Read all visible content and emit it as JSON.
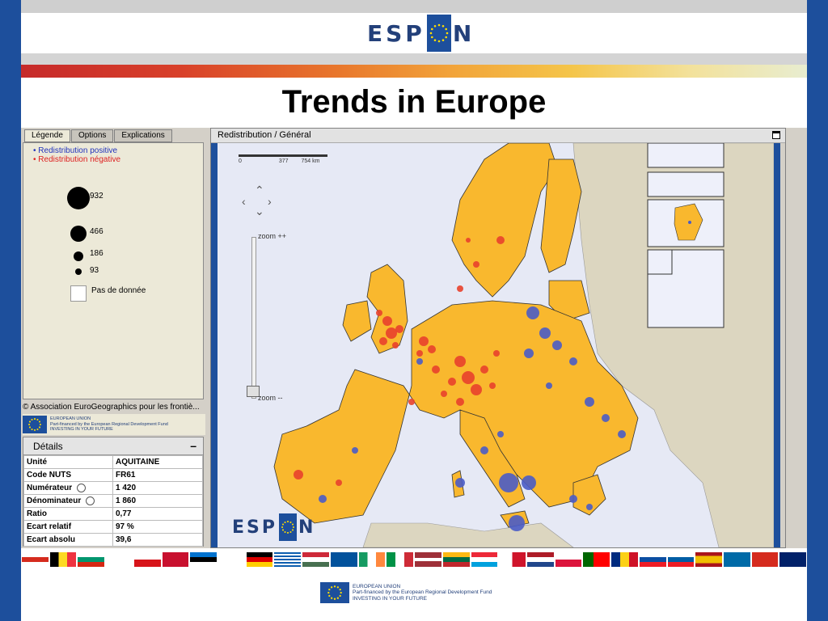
{
  "header": {
    "logo_left": "ESP",
    "logo_right": "N"
  },
  "title": "Trends in Europe",
  "left_panel": {
    "tabs": [
      {
        "label": "Légende",
        "active": true
      },
      {
        "label": "Options",
        "active": false
      },
      {
        "label": "Explications",
        "active": false
      }
    ],
    "legend": {
      "positive_label": "• Redistribution positive",
      "negative_label": "• Redistribution négative",
      "positive_color": "#2233bb",
      "negative_color": "#dd2222",
      "bubbles": [
        {
          "value": "932"
        },
        {
          "value": "466"
        },
        {
          "value": "186"
        },
        {
          "value": "93"
        }
      ],
      "no_data_label": "Pas de donnée"
    },
    "copyright": "© Association EuroGeographics pour les frontiè...",
    "eu_text": [
      "EUROPEAN UNION",
      "Part-financed by the European Regional Development Fund",
      "INVESTING IN YOUR FUTURE"
    ],
    "details": {
      "title": "Détails",
      "collapse_label": "–",
      "rows": [
        {
          "key": "Unité",
          "value": "AQUITAINE"
        },
        {
          "key": "Code NUTS",
          "value": "FR61"
        },
        {
          "key": "Numérateur",
          "value": "1 420"
        },
        {
          "key": "Dénominateur",
          "value": "1 860"
        },
        {
          "key": "Ratio",
          "value": "0,77"
        },
        {
          "key": "Ecart relatif",
          "value": "97 %"
        },
        {
          "key": "Ecart absolu",
          "value": "39,6"
        }
      ]
    }
  },
  "map_panel": {
    "title": "Redistribution / Général",
    "scale_labels": [
      "0",
      "377",
      "754 km"
    ],
    "zoom_in_label": "zoom ++",
    "zoom_out_label": "zoom --",
    "logo_left": "ESP",
    "logo_right": "N",
    "land_color": "#f9b82e",
    "sea_color": "#e6e9f5",
    "nonmember_color": "#dcd6c0"
  },
  "footer": {
    "eu_text": [
      "EUROPEAN UNION",
      "Part-financed by the European Regional Development Fund",
      "INVESTING IN YOUR FUTURE"
    ]
  }
}
